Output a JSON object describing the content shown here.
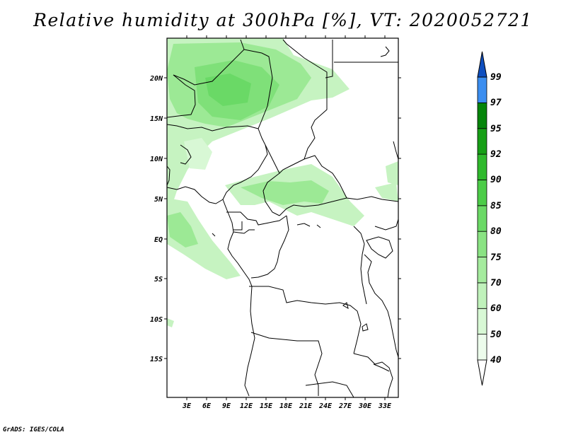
{
  "title": "Relative humidity at 300hPa [%], VT: 2020052721",
  "credit": "GrADS: IGES/COLA",
  "map": {
    "lon_labels": [
      "3E",
      "6E",
      "9E",
      "12E",
      "15E",
      "18E",
      "21E",
      "24E",
      "27E",
      "30E",
      "33E"
    ],
    "lat_labels": [
      "20N",
      "15N",
      "10N",
      "5N",
      "EQ",
      "5S",
      "10S",
      "15S"
    ],
    "lon_range": [
      0,
      35
    ],
    "lat_range": [
      -20,
      25
    ]
  },
  "colorbar": {
    "labels": [
      "40",
      "50",
      "60",
      "70",
      "75",
      "80",
      "85",
      "90",
      "92",
      "95",
      "97",
      "99"
    ],
    "colors": [
      "#edfcec",
      "#d8f8d5",
      "#c0f2bb",
      "#a5eb9e",
      "#8ae383",
      "#6bd966",
      "#4ccc48",
      "#2fb92c",
      "#179f16",
      "#05850a",
      "#3b8ef0",
      "#2169dc",
      "#0f4fbf"
    ]
  }
}
